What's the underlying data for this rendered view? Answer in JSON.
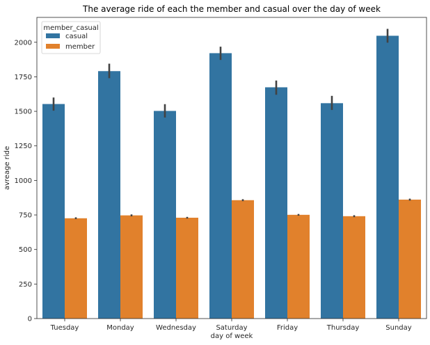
{
  "chart_data": {
    "type": "bar",
    "title": "The average ride of each the member and casual over the day  of week",
    "xlabel": "day of week",
    "ylabel": "avreage ride",
    "categories": [
      "Tuesday",
      "Monday",
      "Wednesday",
      "Saturday",
      "Friday",
      "Thursday",
      "Sunday"
    ],
    "series": [
      {
        "name": "casual",
        "color": "#3274a1",
        "values": [
          1553,
          1791,
          1503,
          1921,
          1674,
          1559,
          2047
        ],
        "error_low": [
          1505,
          1740,
          1455,
          1872,
          1620,
          1510,
          1997
        ],
        "error_high": [
          1600,
          1845,
          1552,
          1968,
          1723,
          1612,
          2097
        ]
      },
      {
        "name": "member",
        "color": "#e1812c",
        "values": [
          726,
          747,
          730,
          857,
          751,
          741,
          861
        ],
        "error_low": [
          720,
          740,
          724,
          850,
          745,
          734,
          854
        ],
        "error_high": [
          733,
          754,
          736,
          864,
          757,
          748,
          868
        ]
      }
    ],
    "ylim": [
      0,
      2180
    ],
    "yticks": [
      0,
      250,
      500,
      750,
      1000,
      1250,
      1500,
      1750,
      2000
    ],
    "grid": false,
    "legend": {
      "title": "member_casual",
      "placement": "top-left"
    }
  }
}
